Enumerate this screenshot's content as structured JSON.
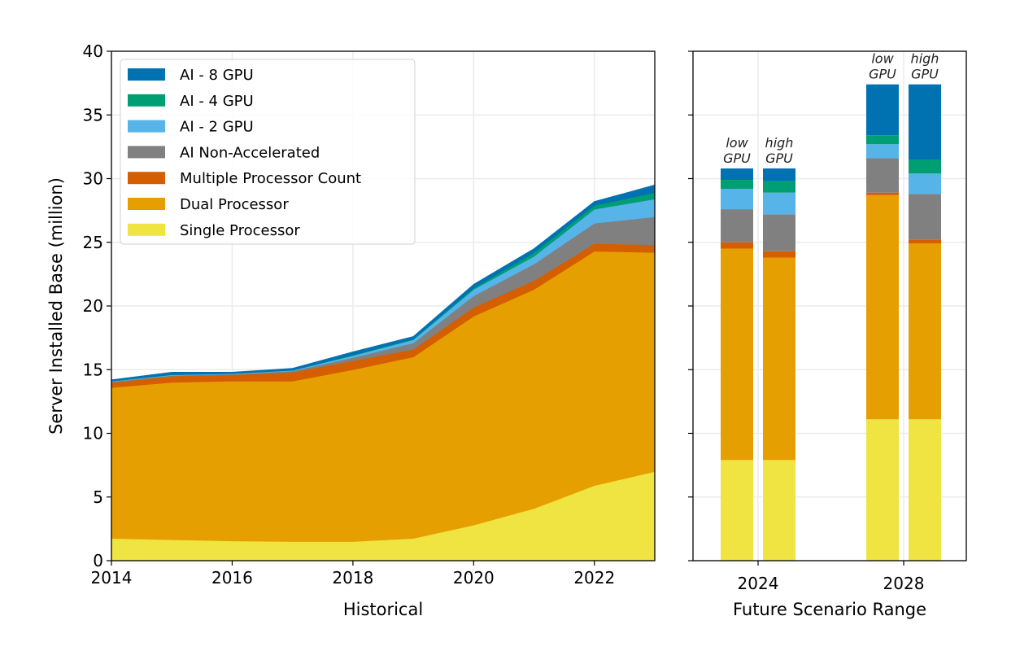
{
  "chart_data": [
    {
      "type": "area",
      "stacked": true,
      "xlabel": "Historical",
      "ylabel": "Server Installed Base (million)",
      "xlim": [
        2014,
        2023
      ],
      "ylim": [
        0,
        40
      ],
      "grid": true,
      "x_ticks": [
        "2014",
        "2016",
        "2018",
        "2020",
        "2022"
      ],
      "y_ticks": [
        "0",
        "5",
        "10",
        "15",
        "20",
        "25",
        "30",
        "35",
        "40"
      ],
      "legend_position": "top-left",
      "x": [
        2014,
        2015,
        2016,
        2017,
        2018,
        2019,
        2020,
        2021,
        2022,
        2023
      ],
      "series": [
        {
          "name": "Single Processor",
          "color": "#F0E442",
          "values": [
            1.75,
            1.65,
            1.55,
            1.5,
            1.5,
            1.75,
            2.8,
            4.1,
            5.9,
            7.0
          ]
        },
        {
          "name": "Dual Processor",
          "color": "#E69F00",
          "values": [
            11.85,
            12.35,
            12.55,
            12.6,
            13.5,
            14.25,
            16.4,
            17.2,
            18.4,
            17.2
          ]
        },
        {
          "name": "Multiple Processor Count",
          "color": "#D55E00",
          "values": [
            0.4,
            0.5,
            0.5,
            0.7,
            0.7,
            0.6,
            0.7,
            0.7,
            0.6,
            0.6
          ]
        },
        {
          "name": "AI Non-Accelerated",
          "color": "#808080",
          "values": [
            0.05,
            0.05,
            0.05,
            0.1,
            0.25,
            0.5,
            0.9,
            1.3,
            1.6,
            2.2
          ]
        },
        {
          "name": "AI - 2 GPU",
          "color": "#56B4E9",
          "values": [
            0.05,
            0.05,
            0.05,
            0.05,
            0.15,
            0.25,
            0.5,
            0.6,
            1.1,
            1.4
          ]
        },
        {
          "name": "AI - 4 GPU",
          "color": "#009E73",
          "values": [
            0,
            0,
            0,
            0,
            0.05,
            0.05,
            0.1,
            0.3,
            0.3,
            0.5
          ]
        },
        {
          "name": "AI - 8 GPU",
          "color": "#0072B2",
          "values": [
            0.1,
            0.2,
            0.1,
            0.15,
            0.25,
            0.2,
            0.3,
            0.3,
            0.3,
            0.6
          ]
        }
      ]
    },
    {
      "type": "bar",
      "stacked": true,
      "xlabel": "Future Scenario Range",
      "ylim": [
        0,
        40
      ],
      "grid": true,
      "x_ticks": [
        "2024",
        "2028"
      ],
      "bars": [
        {
          "year": "2024",
          "label": "low\nGPU",
          "label_lines": [
            "low",
            "GPU"
          ],
          "values": [
            7.9,
            16.6,
            0.5,
            2.6,
            1.6,
            0.7,
            0.9
          ]
        },
        {
          "year": "2024",
          "label": "high\nGPU",
          "label_lines": [
            "high",
            "GPU"
          ],
          "values": [
            7.9,
            15.9,
            0.5,
            2.9,
            1.7,
            0.9,
            1.0
          ]
        },
        {
          "year": "2028",
          "label": "low\nGPU",
          "label_lines": [
            "low",
            "GPU"
          ],
          "values": [
            11.1,
            17.6,
            0.2,
            2.7,
            1.1,
            0.7,
            4.0
          ]
        },
        {
          "year": "2028",
          "label": "high\nGPU",
          "label_lines": [
            "high",
            "GPU"
          ],
          "values": [
            11.1,
            13.8,
            0.3,
            3.6,
            1.6,
            1.1,
            5.9
          ]
        }
      ],
      "series_order": [
        "Single Processor",
        "Dual Processor",
        "Multiple Processor Count",
        "AI Non-Accelerated",
        "AI - 2 GPU",
        "AI - 4 GPU",
        "AI - 8 GPU"
      ]
    }
  ],
  "legend": {
    "entries": [
      {
        "label": "AI - 8 GPU",
        "color": "#0072B2"
      },
      {
        "label": "AI - 4 GPU",
        "color": "#009E73"
      },
      {
        "label": "AI - 2 GPU",
        "color": "#56B4E9"
      },
      {
        "label": "AI Non-Accelerated",
        "color": "#808080"
      },
      {
        "label": "Multiple Processor Count",
        "color": "#D55E00"
      },
      {
        "label": "Dual Processor",
        "color": "#E69F00"
      },
      {
        "label": "Single Processor",
        "color": "#F0E442"
      }
    ]
  }
}
